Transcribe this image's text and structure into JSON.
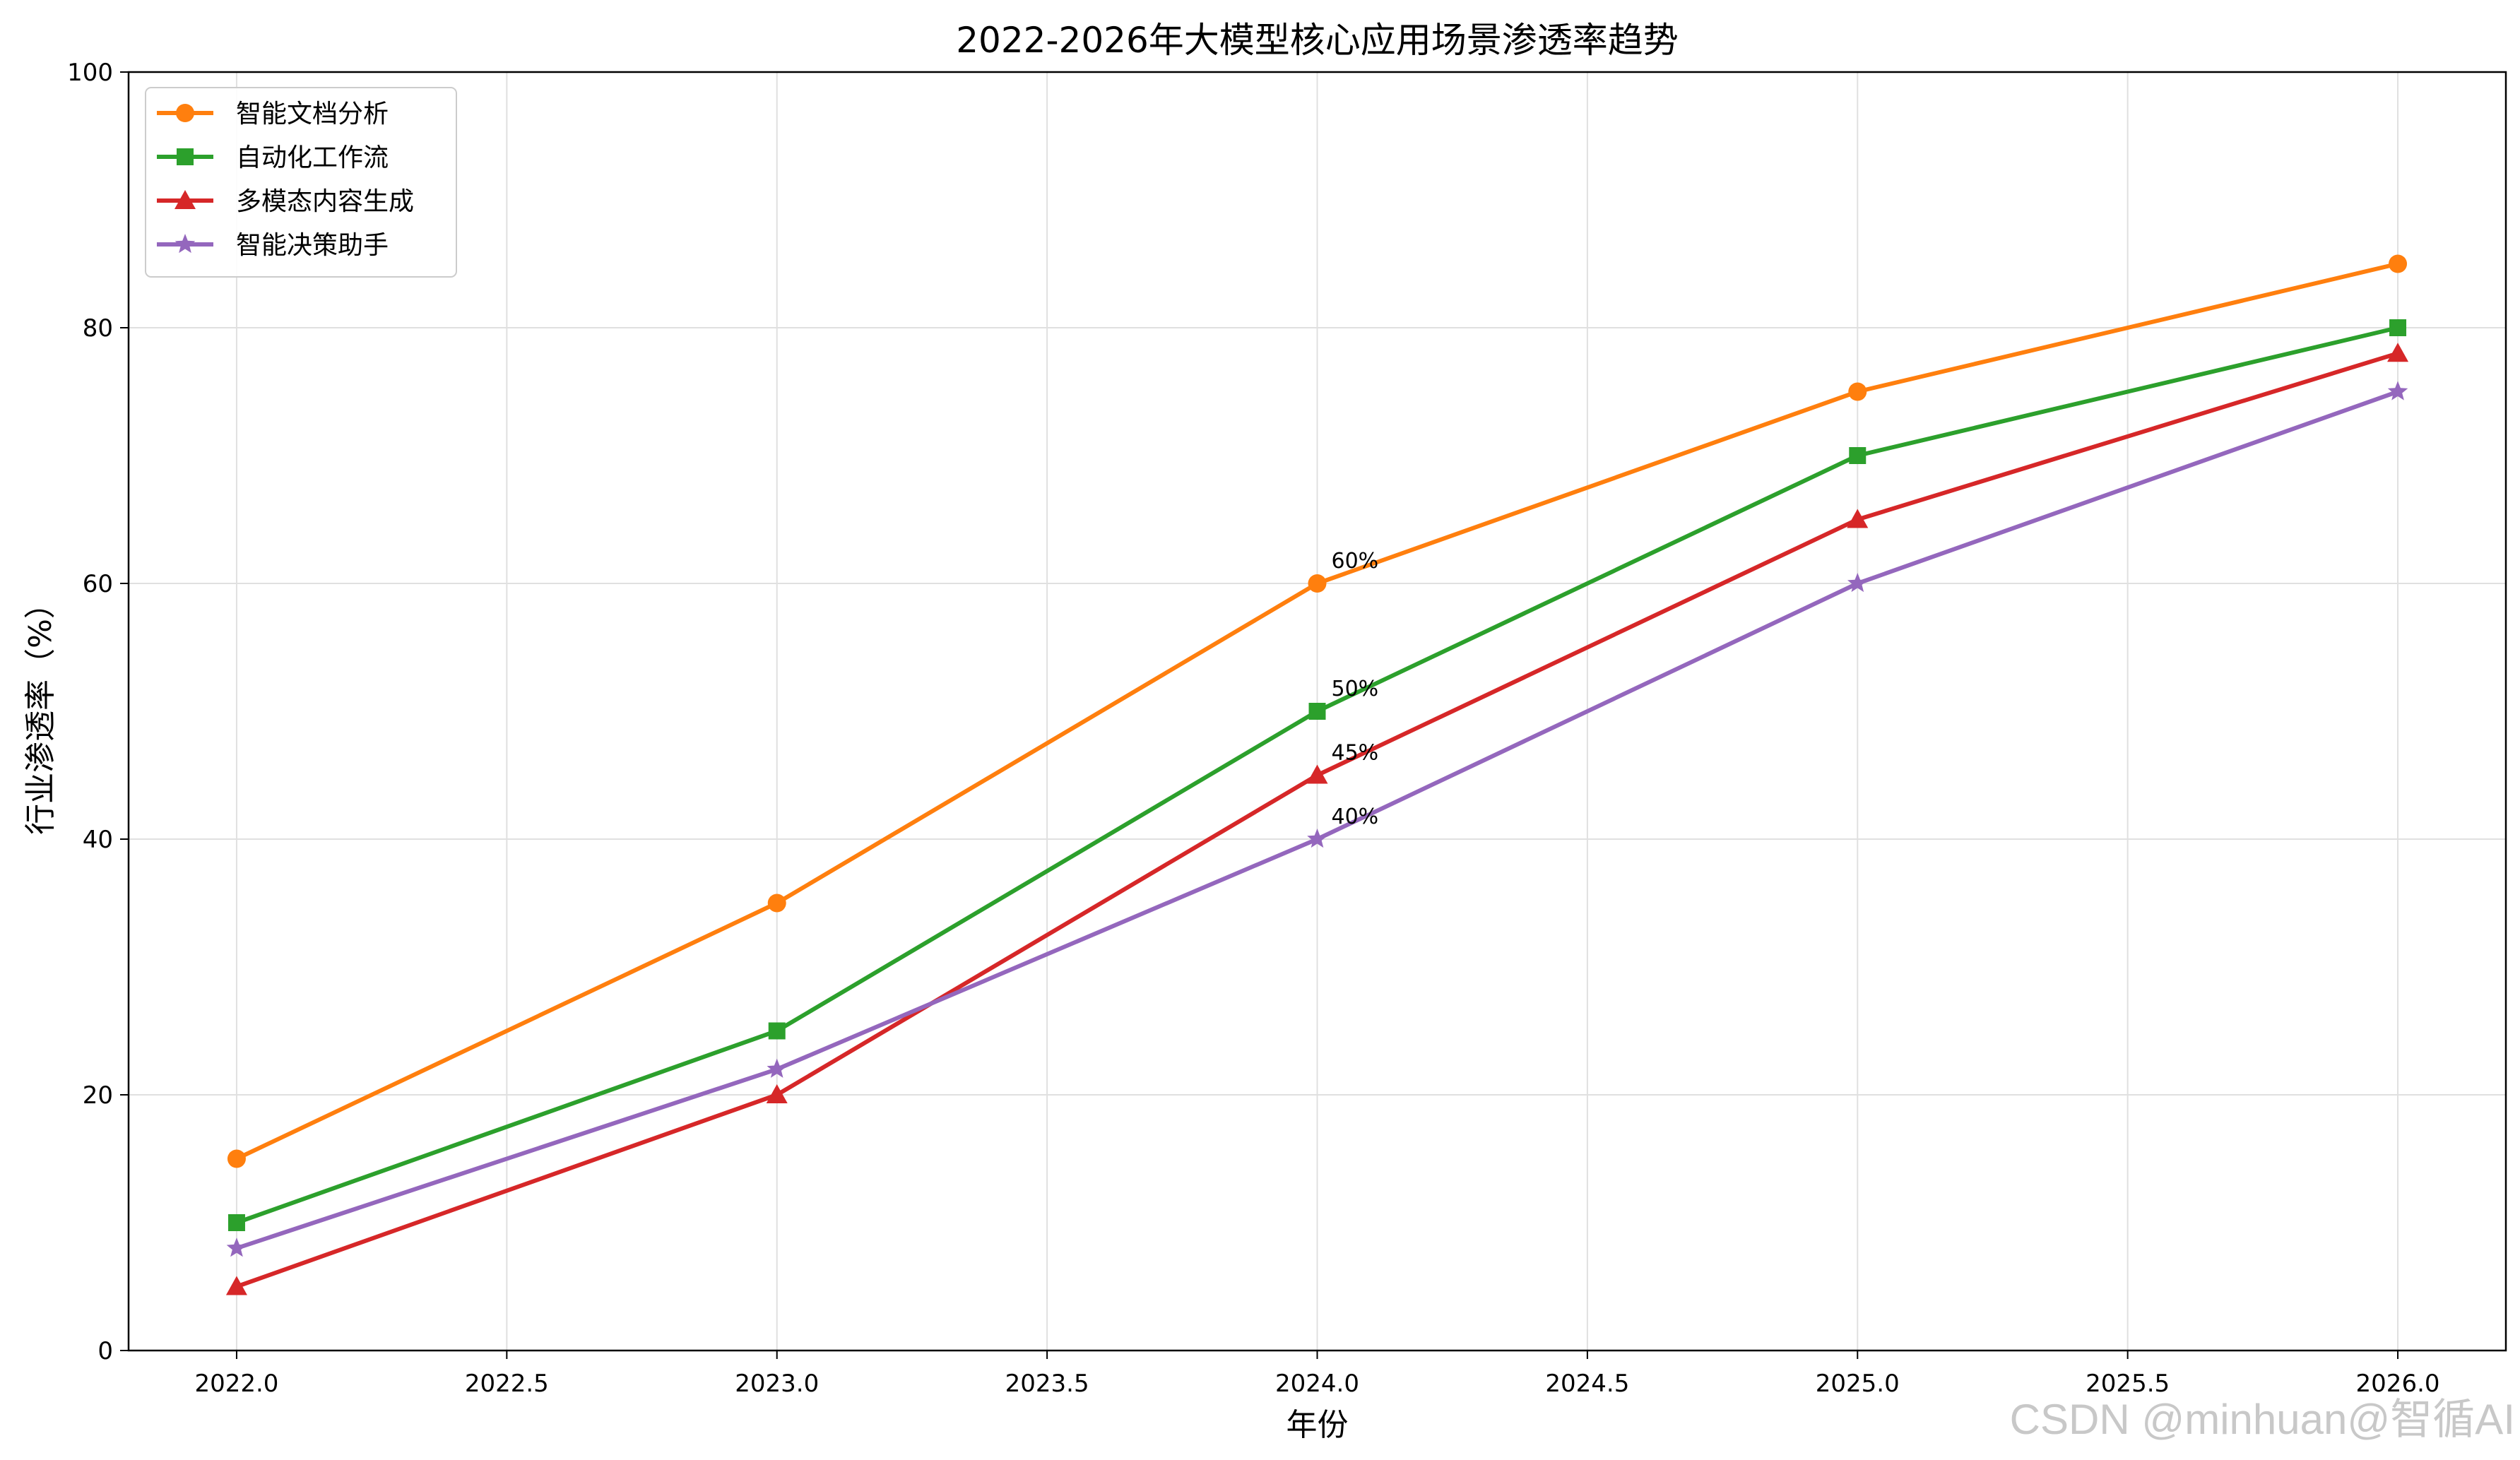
{
  "chart_data": {
    "type": "line",
    "title": "2022-2026年大模型核心应用场景渗透率趋势",
    "xlabel": "年份",
    "ylabel": "行业渗透率（%）",
    "x": [
      2022,
      2023,
      2024,
      2025,
      2026
    ],
    "xlim": [
      2021.8,
      2026.2
    ],
    "ylim": [
      0,
      100
    ],
    "x_ticks": [
      2022.0,
      2022.5,
      2023.0,
      2023.5,
      2024.0,
      2024.5,
      2025.0,
      2025.5,
      2026.0
    ],
    "x_tick_labels": [
      "2022.0",
      "2022.5",
      "2023.0",
      "2023.5",
      "2024.0",
      "2024.5",
      "2025.0",
      "2025.5",
      "2026.0"
    ],
    "y_ticks": [
      0,
      20,
      40,
      60,
      80,
      100
    ],
    "y_tick_labels": [
      "0",
      "20",
      "40",
      "60",
      "80",
      "100"
    ],
    "grid": true,
    "legend_position": "top-left",
    "series": [
      {
        "name": "智能文档分析",
        "color": "#ff7f0e",
        "marker": "circle",
        "values": [
          15,
          35,
          60,
          75,
          85
        ]
      },
      {
        "name": "自动化工作流",
        "color": "#2ca02c",
        "marker": "square",
        "values": [
          10,
          25,
          50,
          70,
          80
        ]
      },
      {
        "name": "多模态内容生成",
        "color": "#d62728",
        "marker": "triangle",
        "values": [
          5,
          20,
          45,
          65,
          78
        ]
      },
      {
        "name": "智能决策助手",
        "color": "#9467bd",
        "marker": "star",
        "values": [
          8,
          22,
          40,
          60,
          75
        ]
      }
    ],
    "annotations": [
      {
        "x": 2024,
        "y": 60,
        "text": "60%"
      },
      {
        "x": 2024,
        "y": 50,
        "text": "50%"
      },
      {
        "x": 2024,
        "y": 45,
        "text": "45%"
      },
      {
        "x": 2024,
        "y": 40,
        "text": "40%"
      }
    ]
  },
  "watermark": "CSDN @minhuan@智循AI"
}
